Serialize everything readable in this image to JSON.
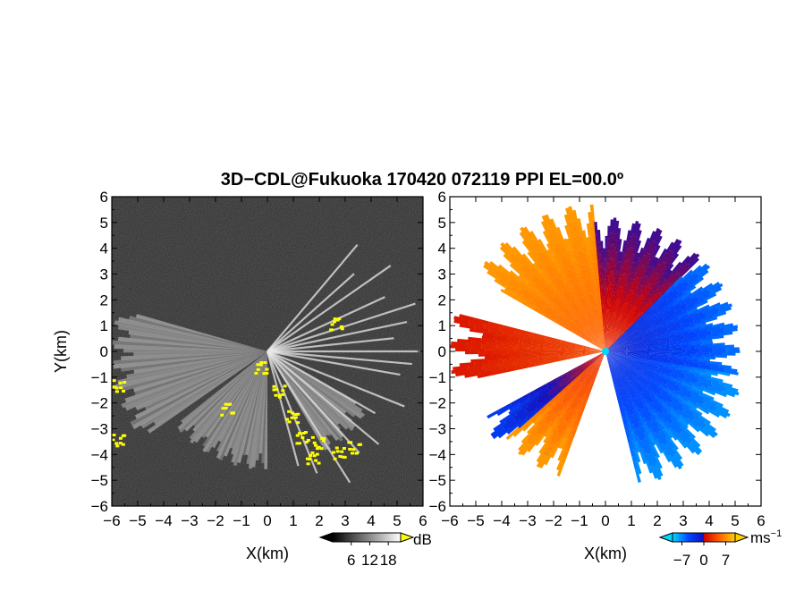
{
  "chart_data": {
    "type": "heatmap",
    "title": "3D−CDL@Fukuoka 170420 072119 PPI EL=00.0º",
    "panels": [
      {
        "name": "reflectivity",
        "xlabel": "X(km)",
        "ylabel": "Y(km)",
        "xlim": [
          -6,
          6
        ],
        "ylim": [
          -6,
          6
        ],
        "xticks": [
          "−6",
          "−5",
          "−4",
          "−3",
          "−2",
          "−1",
          "0",
          "1",
          "2",
          "3",
          "4",
          "5",
          "6"
        ],
        "yticks": [
          "6",
          "5",
          "4",
          "3",
          "2",
          "1",
          "0",
          "−1",
          "−2",
          "−3",
          "−4",
          "−5",
          "−6"
        ],
        "colorbar": {
          "ticks": [
            "6",
            "12",
            "18"
          ],
          "tick_values": [
            6,
            12,
            18
          ],
          "range": [
            0,
            22
          ],
          "unit": "dB",
          "palette": [
            "#000000",
            "#ffffff"
          ],
          "over_color": "#ffff00"
        },
        "features": {
          "background": "#2a2a2a",
          "rays": [
            {
              "az": 40,
              "len": 5.4
            },
            {
              "az": 55,
              "len": 5.8
            },
            {
              "az": 65,
              "len": 5.0
            },
            {
              "az": 78,
              "len": 5.5
            },
            {
              "az": 90,
              "len": 5.9
            },
            {
              "az": 100,
              "len": 5.2
            },
            {
              "az": 112,
              "len": 5.7
            },
            {
              "az": 120,
              "len": 4.8
            },
            {
              "az": 130,
              "len": 5.6
            },
            {
              "az": 138,
              "len": 5.3
            },
            {
              "az": 148,
              "len": 6.0
            },
            {
              "az": 158,
              "len": 5.1
            },
            {
              "az": 165,
              "len": 4.6
            },
            {
              "az": 95,
              "len": 5.6
            },
            {
              "az": 84,
              "len": 4.9
            },
            {
              "az": 72,
              "len": 6.0
            },
            {
              "az": 48,
              "len": 4.5
            }
          ],
          "sectors": [
            {
              "az_start": 235,
              "az_end": 285,
              "len": 6.0
            },
            {
              "az_start": 180,
              "az_end": 230,
              "len": 4.6
            },
            {
              "az_start": 120,
              "az_end": 150,
              "len": 4.5
            }
          ],
          "yellow_clusters": [
            {
              "x": -0.3,
              "y": -0.6
            },
            {
              "x": 0.4,
              "y": -1.5
            },
            {
              "x": 0.9,
              "y": -2.5
            },
            {
              "x": 1.3,
              "y": -3.3
            },
            {
              "x": 1.9,
              "y": -3.5
            },
            {
              "x": 1.7,
              "y": -4.1
            },
            {
              "x": 2.7,
              "y": -3.9
            },
            {
              "x": 3.3,
              "y": -3.7
            },
            {
              "x": -1.6,
              "y": -2.2
            },
            {
              "x": -5.8,
              "y": -1.3
            },
            {
              "x": -5.8,
              "y": -3.4
            },
            {
              "x": 2.6,
              "y": 1.1
            }
          ]
        }
      },
      {
        "name": "doppler-velocity",
        "xlabel": "X(km)",
        "ylabel": "",
        "xlim": [
          -6,
          6
        ],
        "ylim": [
          -6,
          6
        ],
        "xticks": [
          "−6",
          "−5",
          "−4",
          "−3",
          "−2",
          "−1",
          "0",
          "1",
          "2",
          "3",
          "4",
          "5",
          "6"
        ],
        "yticks": [
          "6",
          "5",
          "4",
          "3",
          "2",
          "1",
          "0",
          "−1",
          "−2",
          "−3",
          "−4",
          "−5",
          "−6"
        ],
        "colorbar": {
          "ticks": [
            "−7",
            "0",
            "7"
          ],
          "tick_values": [
            -7,
            0,
            7
          ],
          "range": [
            -10,
            10
          ],
          "unit": "ms",
          "unit_exponent": "−1",
          "palette": [
            "#00d8ff",
            "#0048ff",
            "#1010c0",
            "#d00000",
            "#ff6000",
            "#ffd000"
          ]
        },
        "features": {
          "background": "#ffffff",
          "sectors": [
            {
              "az_start": -60,
              "az_end": -5,
              "len": 5.8,
              "v_near": 6,
              "v_far": 8
            },
            {
              "az_start": -5,
              "az_end": 45,
              "len": 5.2,
              "v_near": 4,
              "v_far": -1
            },
            {
              "az_start": 45,
              "az_end": 100,
              "len": 5.2,
              "v_near": -3,
              "v_far": -7
            },
            {
              "az_start": 100,
              "az_end": 165,
              "len": 5.4,
              "v_near": -4,
              "v_far": -8
            },
            {
              "az_start": 200,
              "az_end": 228,
              "len": 5.2,
              "v_near": 4,
              "v_far": 8
            },
            {
              "az_start": 228,
              "az_end": 240,
              "len": 5.5,
              "v_near": 2,
              "v_far": -5
            },
            {
              "az_start": 258,
              "az_end": 284,
              "len": 6.0,
              "v_near": 5,
              "v_far": 3
            }
          ]
        }
      }
    ]
  }
}
